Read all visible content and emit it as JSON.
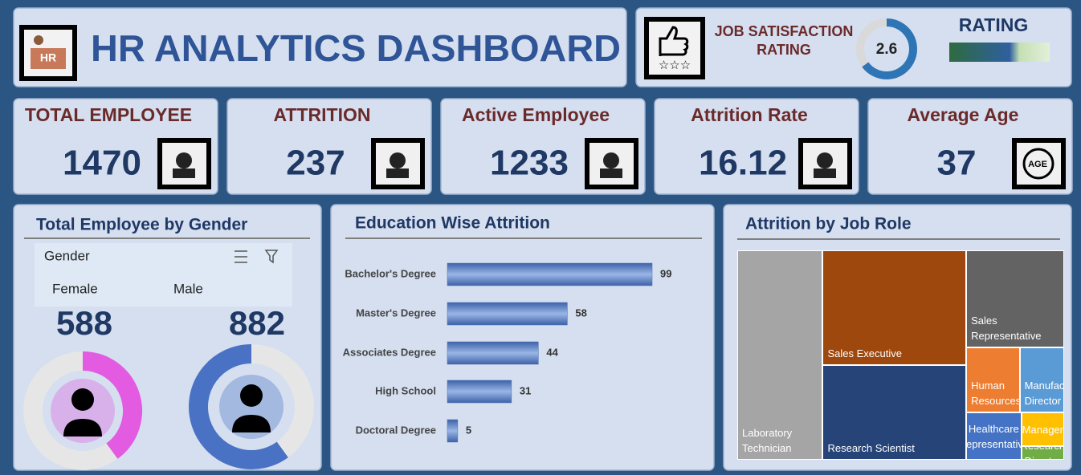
{
  "header": {
    "title": "HR ANALYTICS DASHBOARD",
    "icon_label": "HR"
  },
  "kpis": [
    {
      "label": "TOTAL EMPLOYEE",
      "value": 1470
    },
    {
      "label": "ATTRITION",
      "value": 237
    },
    {
      "label": "Active Employee",
      "value": 1233
    },
    {
      "label": "Attrition Rate",
      "value": 16.12
    },
    {
      "label": "Average Age",
      "value": 37,
      "icon_label": "AGE"
    }
  ],
  "chart_data": [
    {
      "type": "gauge",
      "title": "JOB SATISFACTION RATING",
      "value": 2.6,
      "ylim": [
        0,
        4
      ],
      "color": "#2e75b6",
      "track_color": "#d9d9d9",
      "legend_title": "RATING",
      "legend_colors": [
        "#2e6b3f",
        "#2f5f9f",
        "#c5e0b4"
      ]
    },
    {
      "type": "pie",
      "title": "Total Employee by Gender",
      "slicer_label": "Gender",
      "categories": [
        "Female",
        "Male"
      ],
      "values": [
        588,
        882
      ],
      "colors": [
        "#e35be0",
        "#4a72c4"
      ],
      "track_color": "#e6e6e6"
    },
    {
      "type": "bar",
      "title": "Education Wise Attrition",
      "categories": [
        "Bachelor's Degree",
        "Master's Degree",
        "Associates Degree",
        "High School",
        "Doctoral Degree"
      ],
      "values": [
        99,
        58,
        44,
        31,
        5
      ],
      "xlim": [
        0,
        100
      ],
      "color": "#4a6fb5"
    },
    {
      "type": "treemap",
      "title": "Attrition by Job Role",
      "categories": [
        "Laboratory Technician",
        "Sales Executive",
        "Research Scientist",
        "Sales Representative",
        "Human Resources",
        "Manufacturing Director",
        "Healthcare Representative",
        "Manager",
        "Research Director"
      ],
      "values": [
        62,
        57,
        47,
        33,
        12,
        10,
        9,
        5,
        2
      ],
      "colors": [
        "#a5a5a5",
        "#9e480e",
        "#264478",
        "#636363",
        "#ed7d31",
        "#5b9bd5",
        "#4472c4",
        "#ffc000",
        "#70ad47"
      ]
    }
  ]
}
